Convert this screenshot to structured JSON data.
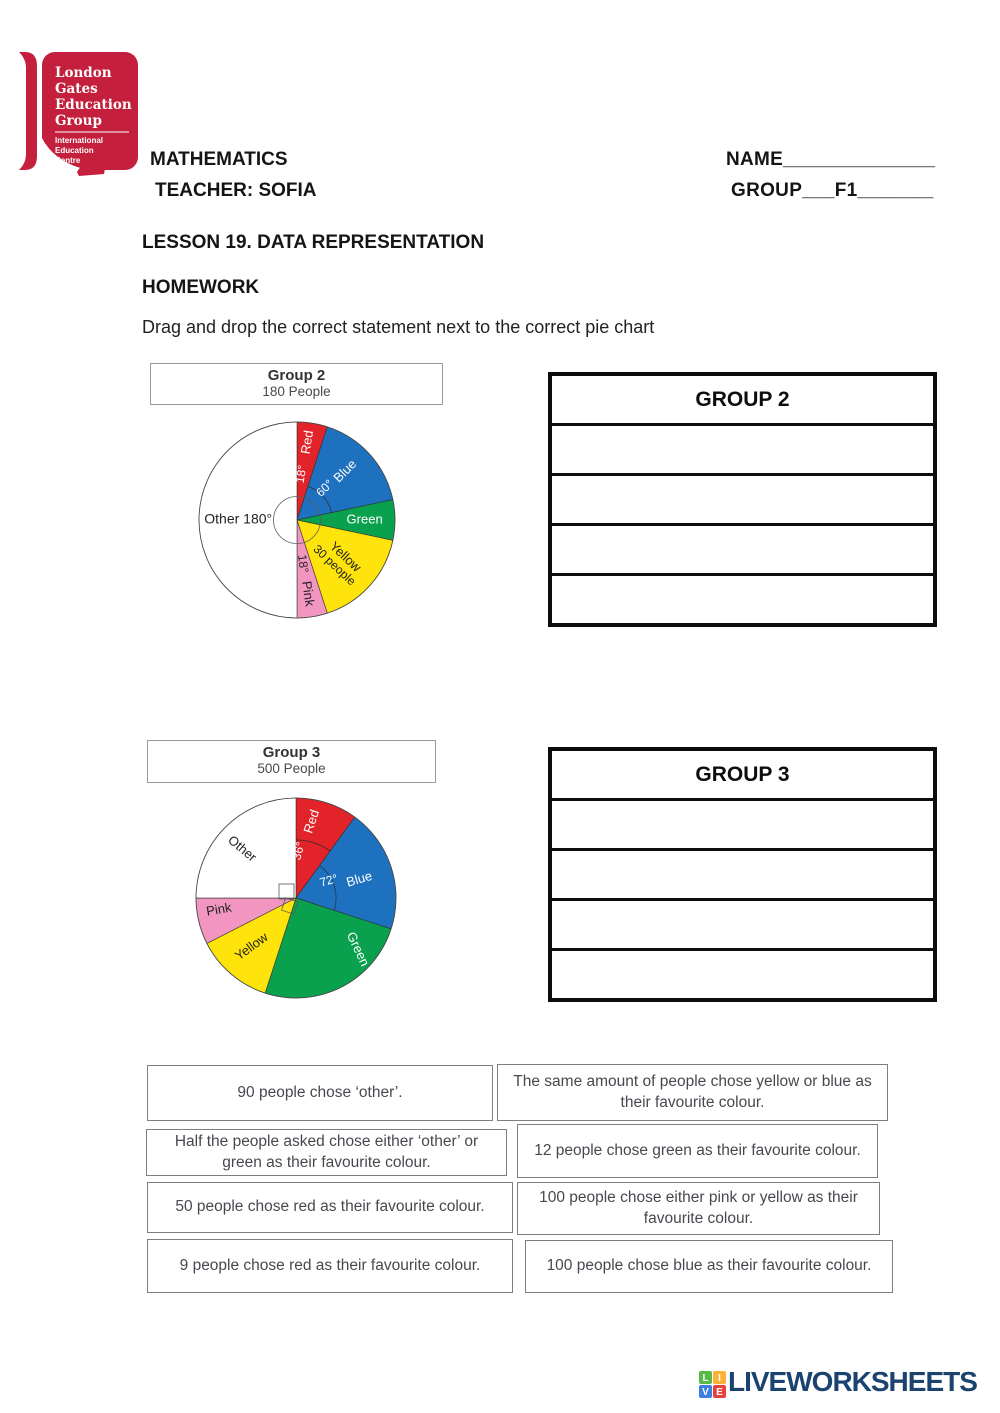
{
  "logo": {
    "org_lines": [
      "London",
      "Gates",
      "Education",
      "Group"
    ],
    "sub_lines": [
      "International",
      "Education",
      "Centre"
    ],
    "color": "#c41f3d"
  },
  "header": {
    "subject": "MATHEMATICS",
    "teacher": "TEACHER: SOFIA",
    "name_label": "NAME______________",
    "group_label": "GROUP___F1_______"
  },
  "lesson_title": "LESSON 19. DATA REPRESENTATION",
  "homework_label": "HOMEWORK",
  "instruction": "Drag and drop the correct statement next to the correct pie chart",
  "tables": {
    "group2": {
      "header": "GROUP 2",
      "empty_rows": 4
    },
    "group3": {
      "header": "GROUP 3",
      "empty_rows": 4
    }
  },
  "statements": {
    "left": [
      {
        "text": "90 people chose ‘other’."
      },
      {
        "text": "Half the people asked chose either ‘other’ or green as their favourite colour."
      },
      {
        "text": "50 people chose red as their favourite colour."
      },
      {
        "text": "9 people chose red as their favourite colour."
      }
    ],
    "right": [
      {
        "text": "The same amount of people chose yellow or blue as their favourite colour."
      },
      {
        "text": "12 people chose green as their favourite colour."
      },
      {
        "text": "100 people chose either pink or yellow as their favourite colour."
      },
      {
        "text": "100 people chose blue as their favourite colour."
      }
    ]
  },
  "chart_data": [
    {
      "type": "pie",
      "title": "Group 2",
      "subtitle": "180 People",
      "radius_px": 98,
      "slices": [
        {
          "name": "Red",
          "degrees": 18,
          "color": "#e2232a",
          "labels": [
            {
              "text": "Red",
              "angle": 8,
              "r": 0.8,
              "rotate": -81,
              "color": "#ffffff",
              "size": 13
            },
            {
              "text": "18°",
              "angle": 6,
              "r": 0.47,
              "rotate": -81,
              "color": "#ffffff",
              "size": 12
            }
          ]
        },
        {
          "name": "Blue",
          "degrees": 60,
          "color": "#1e71bf",
          "labels": [
            {
              "text": "Blue",
              "angle": 45,
              "r": 0.7,
              "rotate": -45,
              "color": "#ffffff",
              "size": 13
            },
            {
              "text": "60°",
              "angle": 42,
              "r": 0.43,
              "rotate": -45,
              "color": "#ffffff",
              "size": 12
            }
          ]
        },
        {
          "name": "Green",
          "degrees": 24,
          "color": "#0aa14e",
          "labels": [
            {
              "text": "Green",
              "angle": 90,
              "r": 0.69,
              "rotate": 0,
              "color": "#ffffff",
              "size": 13
            }
          ]
        },
        {
          "name": "Yellow",
          "degrees": 60,
          "color": "#ffe40c",
          "labels": [
            {
              "text": "Yellow",
              "angle": 128,
              "r": 0.62,
              "rotate": 43,
              "color": "#222222",
              "size": 13
            },
            {
              "text": "30 people",
              "angle": 141,
              "r": 0.6,
              "rotate": 43,
              "color": "#222222",
              "size": 12
            }
          ]
        },
        {
          "name": "Pink",
          "degrees": 18,
          "color": "#f295c0",
          "labels": [
            {
              "text": "Pink",
              "angle": 172,
              "r": 0.76,
              "rotate": 82,
              "color": "#222222",
              "size": 13
            },
            {
              "text": "18°",
              "angle": 173,
              "r": 0.45,
              "rotate": 82,
              "color": "#222222",
              "size": 12
            }
          ]
        },
        {
          "name": "Other",
          "degrees": 180,
          "color": "#ffffff",
          "labels": [
            {
              "text": "Other 180°",
              "angle": 270,
              "r": 0.6,
              "rotate": 0,
              "color": "#222222",
              "size": 14
            }
          ]
        }
      ],
      "annotations": {
        "circle": {
          "r": 0.24
        },
        "arcs": [
          {
            "from": 18,
            "to": 78,
            "r": 0.36
          }
        ],
        "squares": []
      }
    },
    {
      "type": "pie",
      "title": "Group 3",
      "subtitle": "500 People",
      "radius_px": 100,
      "slices": [
        {
          "name": "Red",
          "degrees": 36,
          "color": "#e2232a",
          "labels": [
            {
              "text": "Red",
              "angle": 12,
              "r": 0.78,
              "rotate": -72,
              "color": "#ffffff",
              "size": 13
            },
            {
              "text": "36°",
              "angle": 4,
              "r": 0.47,
              "rotate": -75,
              "color": "#ffffff",
              "size": 12
            }
          ]
        },
        {
          "name": "Blue",
          "degrees": 72,
          "color": "#1e71bf",
          "labels": [
            {
              "text": "Blue",
              "angle": 74,
              "r": 0.66,
              "rotate": -16,
              "color": "#ffffff",
              "size": 13
            },
            {
              "text": "72°",
              "angle": 63,
              "r": 0.37,
              "rotate": -16,
              "color": "#ffffff",
              "size": 12
            }
          ]
        },
        {
          "name": "Green",
          "degrees": 90,
          "color": "#0aa14e",
          "labels": [
            {
              "text": "Green",
              "angle": 130,
              "r": 0.8,
              "rotate": 65,
              "color": "#ffffff",
              "size": 13
            }
          ]
        },
        {
          "name": "Yellow",
          "degrees": 45,
          "color": "#ffe40c",
          "labels": [
            {
              "text": "Yellow",
              "angle": 222,
              "r": 0.66,
              "rotate": -36,
              "color": "#222222",
              "size": 13
            }
          ]
        },
        {
          "name": "Pink",
          "degrees": 27,
          "color": "#f295c0",
          "labels": [
            {
              "text": "Pink",
              "angle": 261,
              "r": 0.78,
              "rotate": -10,
              "color": "#222222",
              "size": 13
            }
          ]
        },
        {
          "name": "Other",
          "degrees": 90,
          "color": "#ffffff",
          "labels": [
            {
              "text": "Other",
              "angle": 312,
              "r": 0.73,
              "rotate": 40,
              "color": "#222222",
              "size": 13
            }
          ]
        }
      ],
      "annotations": {
        "arcs": [
          {
            "from": 0,
            "to": 36,
            "r": 0.58
          },
          {
            "from": 36,
            "to": 108,
            "r": 0.4
          }
        ],
        "squares": [
          {
            "x": -17,
            "y": -14,
            "w": 15,
            "h": 15
          },
          {
            "x": -10,
            "y": 3,
            "w": 13,
            "h": 13,
            "rot": 18
          }
        ]
      }
    }
  ],
  "footer": {
    "brand": "LIVEWORKSHEETS",
    "brand_color": "#1b4370",
    "tiles": [
      {
        "letter": "L",
        "color": "#58b947"
      },
      {
        "letter": "I",
        "color": "#f9b234"
      },
      {
        "letter": "V",
        "color": "#3d7ee0"
      },
      {
        "letter": "E",
        "color": "#e8403a"
      }
    ]
  }
}
